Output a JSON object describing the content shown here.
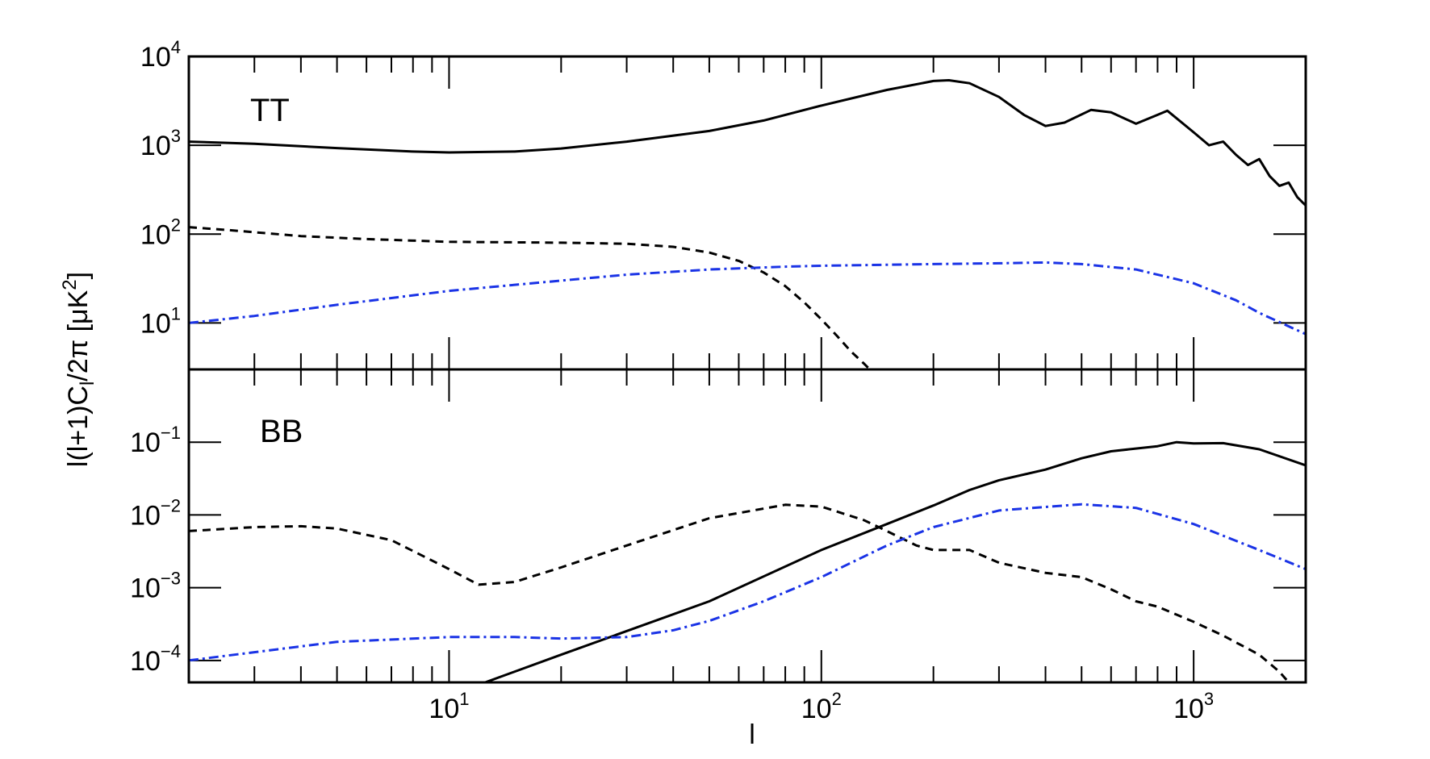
{
  "chart_data": [
    {
      "type": "line",
      "panel": "TT",
      "panel_label": "TT",
      "xscale": "log",
      "yscale": "log",
      "xlim": [
        2,
        2000
      ],
      "ylim": [
        3,
        10000
      ],
      "x_ticks": [
        {
          "base": "10",
          "exp": "1",
          "value": 10
        },
        {
          "base": "10",
          "exp": "2",
          "value": 100
        },
        {
          "base": "10",
          "exp": "3",
          "value": 1000
        }
      ],
      "y_ticks": [
        {
          "base": "10",
          "exp": "1",
          "value": 10
        },
        {
          "base": "10",
          "exp": "2",
          "value": 100
        },
        {
          "base": "10",
          "exp": "3",
          "value": 1000
        },
        {
          "base": "10",
          "exp": "4",
          "value": 10000
        }
      ],
      "series": [
        {
          "style": "solid",
          "color": "#000000",
          "x": [
            2,
            3,
            5,
            8,
            10,
            15,
            20,
            30,
            50,
            70,
            100,
            150,
            200,
            220,
            250,
            300,
            350,
            400,
            450,
            530,
            600,
            700,
            800,
            850,
            1000,
            1100,
            1200,
            1300,
            1400,
            1500,
            1600,
            1700,
            1800,
            1900,
            2000
          ],
          "y": [
            1100,
            1040,
            930,
            850,
            830,
            850,
            920,
            1100,
            1450,
            1900,
            2800,
            4200,
            5300,
            5400,
            5000,
            3500,
            2200,
            1650,
            1800,
            2500,
            2350,
            1750,
            2200,
            2450,
            1400,
            1000,
            1100,
            780,
            600,
            700,
            450,
            350,
            380,
            260,
            210
          ]
        },
        {
          "style": "dashed",
          "color": "#000000",
          "x": [
            2,
            2.5,
            3,
            4,
            6,
            10,
            20,
            30,
            40,
            50,
            60,
            70,
            80,
            90,
            100,
            110,
            120,
            130,
            135
          ],
          "y": [
            120,
            112,
            105,
            95,
            88,
            82,
            80,
            78,
            72,
            62,
            50,
            37,
            26,
            17,
            11,
            7.2,
            4.8,
            3.5,
            3
          ]
        },
        {
          "style": "dashdot",
          "color": "#1a33e6",
          "x": [
            2,
            3,
            5,
            10,
            20,
            30,
            50,
            80,
            100,
            200,
            300,
            400,
            500,
            700,
            1000,
            1300,
            1500,
            2000
          ],
          "y": [
            10,
            12,
            16,
            23,
            30,
            35,
            40,
            43,
            44,
            46,
            47,
            48,
            46,
            40,
            28,
            18,
            13,
            7.5
          ]
        }
      ]
    },
    {
      "type": "line",
      "panel": "BB",
      "panel_label": "BB",
      "xscale": "log",
      "yscale": "log",
      "xlim": [
        2,
        2000
      ],
      "ylim": [
        5e-05,
        1
      ],
      "xlabel": "l",
      "ylabel_parts": [
        "l(l+1)C",
        "l",
        "/2π [μK",
        "2",
        "]"
      ],
      "x_ticks": [
        {
          "base": "10",
          "exp": "1",
          "value": 10
        },
        {
          "base": "10",
          "exp": "2",
          "value": 100
        },
        {
          "base": "10",
          "exp": "3",
          "value": 1000
        }
      ],
      "y_ticks": [
        {
          "base": "10",
          "exp": "−4",
          "value": 0.0001
        },
        {
          "base": "10",
          "exp": "−3",
          "value": 0.001
        },
        {
          "base": "10",
          "exp": "−2",
          "value": 0.01
        },
        {
          "base": "10",
          "exp": "−1",
          "value": 0.1
        }
      ],
      "series": [
        {
          "style": "solid",
          "color": "#000000",
          "x": [
            12.5,
            20,
            50,
            100,
            150,
            200,
            250,
            300,
            400,
            500,
            600,
            800,
            900,
            1000,
            1200,
            1500,
            2000
          ],
          "y": [
            5e-05,
            0.00012,
            0.00065,
            0.0033,
            0.0075,
            0.0135,
            0.022,
            0.03,
            0.042,
            0.06,
            0.075,
            0.088,
            0.1,
            0.096,
            0.097,
            0.08,
            0.048
          ]
        },
        {
          "style": "dashed",
          "color": "#000000",
          "x": [
            2,
            3,
            4,
            5,
            7,
            10,
            12,
            15,
            20,
            30,
            50,
            80,
            100,
            130,
            150,
            180,
            200,
            250,
            300,
            400,
            500,
            600,
            700,
            800,
            1000,
            1200,
            1500,
            1700,
            1800
          ],
          "y": [
            0.006,
            0.0068,
            0.007,
            0.0065,
            0.0045,
            0.0018,
            0.0011,
            0.0012,
            0.0019,
            0.0038,
            0.009,
            0.0138,
            0.013,
            0.0085,
            0.006,
            0.0038,
            0.0033,
            0.0033,
            0.0022,
            0.0016,
            0.0014,
            0.00095,
            0.00065,
            0.00055,
            0.00034,
            0.00022,
            0.00012,
            7e-05,
            5e-05
          ]
        },
        {
          "style": "dashdot",
          "color": "#1a33e6",
          "x": [
            2,
            3,
            5,
            10,
            15,
            20,
            30,
            40,
            50,
            70,
            100,
            150,
            200,
            300,
            500,
            700,
            1000,
            1500,
            2000
          ],
          "y": [
            0.0001,
            0.00013,
            0.00018,
            0.00021,
            0.00021,
            0.0002,
            0.00021,
            0.00026,
            0.00035,
            0.00065,
            0.0014,
            0.0038,
            0.0068,
            0.0115,
            0.014,
            0.0125,
            0.0075,
            0.0033,
            0.0018
          ]
        }
      ]
    }
  ]
}
